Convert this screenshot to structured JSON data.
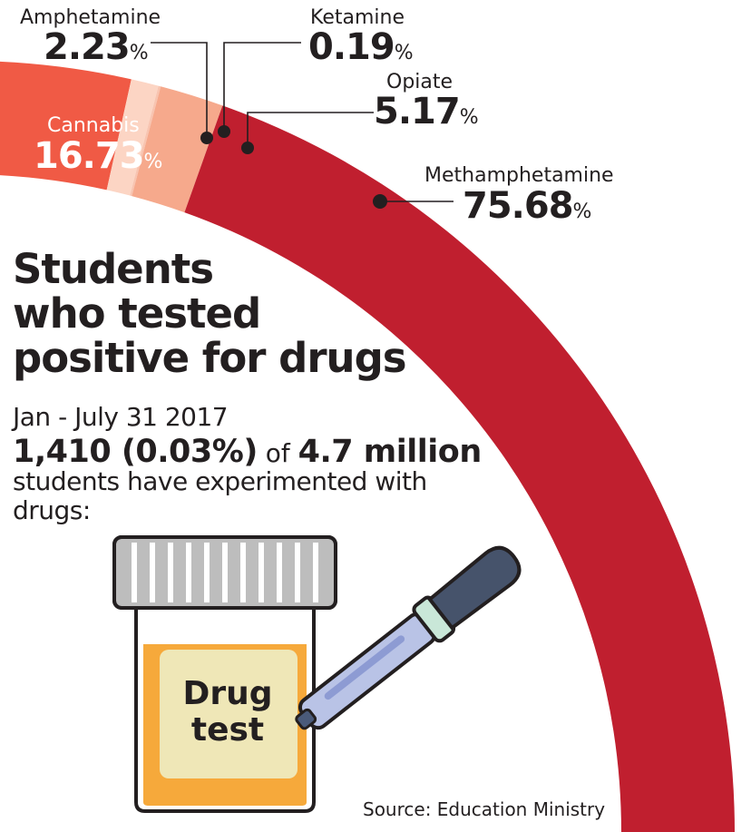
{
  "chart_data": {
    "type": "pie",
    "variant": "half-donut-arc",
    "title": "Students\nwho tested\npositive for drugs",
    "categories": [
      "Cannabis",
      "Amphetamine",
      "Ketamine",
      "Opiate",
      "Methamphetamine"
    ],
    "values": [
      16.73,
      2.23,
      0.19,
      5.17,
      75.68
    ],
    "value_labels": [
      "16.73",
      "2.23",
      "0.19",
      "5.17",
      "75.68"
    ],
    "unit": "%",
    "colors": [
      "#f05a45",
      "#fcd5c4",
      "#f8c4b0",
      "#f6a98c",
      "#c01f2f"
    ]
  },
  "subtitle": {
    "period": "Jan - July 31 2017",
    "count": "1,410 (0.03%)",
    "of": "of",
    "total": "4.7 million",
    "description": "students have experimented with drugs:"
  },
  "illustration": {
    "label": "Drug\ntest",
    "icons": [
      "specimen-jar-icon",
      "dropper-icon"
    ]
  },
  "source": "Source: Education Ministry"
}
